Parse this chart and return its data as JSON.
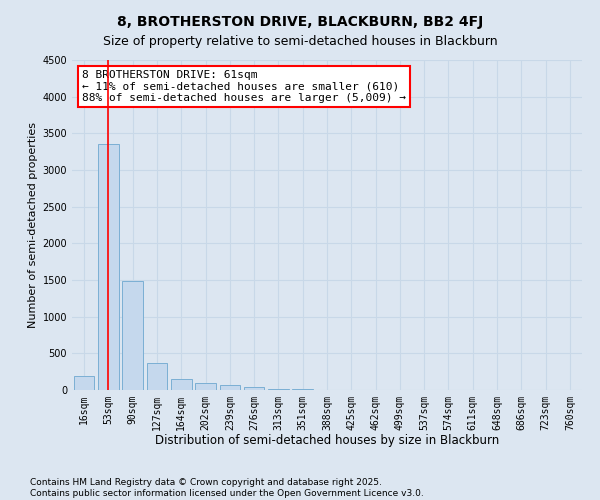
{
  "title": "8, BROTHERSTON DRIVE, BLACKBURN, BB2 4FJ",
  "subtitle": "Size of property relative to semi-detached houses in Blackburn",
  "xlabel": "Distribution of semi-detached houses by size in Blackburn",
  "ylabel": "Number of semi-detached properties",
  "categories": [
    "16sqm",
    "53sqm",
    "90sqm",
    "127sqm",
    "164sqm",
    "202sqm",
    "239sqm",
    "276sqm",
    "313sqm",
    "351sqm",
    "388sqm",
    "425sqm",
    "462sqm",
    "499sqm",
    "537sqm",
    "574sqm",
    "611sqm",
    "648sqm",
    "686sqm",
    "723sqm",
    "760sqm"
  ],
  "values": [
    185,
    3350,
    1480,
    370,
    155,
    95,
    65,
    35,
    20,
    8,
    3,
    0,
    0,
    0,
    0,
    0,
    0,
    0,
    0,
    0,
    0
  ],
  "bar_color": "#c5d8ed",
  "bar_edge_color": "#7bafd4",
  "grid_color": "#c8d8e8",
  "background_color": "#dce6f1",
  "annotation_text": "8 BROTHERSTON DRIVE: 61sqm\n← 11% of semi-detached houses are smaller (610)\n88% of semi-detached houses are larger (5,009) →",
  "annotation_box_color": "white",
  "annotation_box_edge": "red",
  "vline_x_index": 1,
  "vline_color": "red",
  "ylim": [
    0,
    4500
  ],
  "yticks": [
    0,
    500,
    1000,
    1500,
    2000,
    2500,
    3000,
    3500,
    4000,
    4500
  ],
  "footnote": "Contains HM Land Registry data © Crown copyright and database right 2025.\nContains public sector information licensed under the Open Government Licence v3.0.",
  "title_fontsize": 10,
  "xlabel_fontsize": 8.5,
  "ylabel_fontsize": 8,
  "tick_fontsize": 7,
  "annotation_fontsize": 8,
  "footnote_fontsize": 6.5
}
